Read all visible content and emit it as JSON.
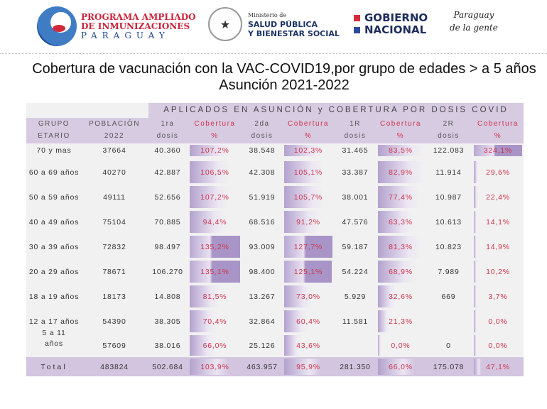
{
  "logos": {
    "pai": [
      "PROGRAMA AMPLIADO",
      "DE INMUNIZACIONES",
      "PARAGUAY"
    ],
    "ministerio": [
      "Ministerio de",
      "SALUD PÚBLICA",
      "Y BIENESTAR SOCIAL"
    ],
    "gobierno": [
      "GOBIERNO",
      "NACIONAL"
    ],
    "slogan": [
      "Paraguay",
      "de la gente"
    ]
  },
  "title": "Cobertura de vacunación con la VAC-COVID19,por grupo de edades > a 5 años Asunción 2021-2022",
  "table": {
    "band": "APLICADOS EN ASUNCIÓN y COBERTURA POR DOSIS COVID",
    "headers": [
      [
        "GRUPO",
        "ETARIO"
      ],
      [
        "POBLACIÓN",
        "2022"
      ],
      [
        "1ra",
        "dosis"
      ],
      [
        "Cobertura",
        "%"
      ],
      [
        "2da",
        "dosis"
      ],
      [
        "Cobertura",
        "%"
      ],
      [
        "1R",
        "dosis"
      ],
      [
        "Cobertura",
        "%"
      ],
      [
        "2R",
        "dosis"
      ],
      [
        "Cobertura",
        "%"
      ]
    ],
    "rows": [
      [
        "70 y mas",
        "37664",
        "40.360",
        "107,2%",
        "38.548",
        "102,3%",
        "31.465",
        "83,5%",
        "122.083",
        "324,1%"
      ],
      [
        "60 a 69 años",
        "40270",
        "42.887",
        "106,5%",
        "42.308",
        "105,1%",
        "33.387",
        "82,9%",
        "11.914",
        "29,6%"
      ],
      [
        "50 a 59 años",
        "49111",
        "52.656",
        "107,2%",
        "51.919",
        "105,7%",
        "38.001",
        "77,4%",
        "10.987",
        "22,4%"
      ],
      [
        "40 a 49 años",
        "75104",
        "70.885",
        "94,4%",
        "68.516",
        "91,2%",
        "47.576",
        "63,3%",
        "10.613",
        "14,1%"
      ],
      [
        "30 a 39 años",
        "72832",
        "98.497",
        "135,2%",
        "93.009",
        "127,7%",
        "59.187",
        "81,3%",
        "10.823",
        "14,9%"
      ],
      [
        "20 a 29 años",
        "78671",
        "106.270",
        "135,1%",
        "98.400",
        "125,1%",
        "54.224",
        "68,9%",
        "7.989",
        "10,2%"
      ],
      [
        "18 a 19 años",
        "18173",
        "14.808",
        "81,5%",
        "13.267",
        "73,0%",
        "5.929",
        "32,6%",
        "669",
        "3,7%"
      ],
      [
        "12 a 17 años",
        "54390",
        "38.305",
        "70,4%",
        "32.864",
        "60,4%",
        "11.581",
        "21,3%",
        "",
        "0,0%"
      ],
      [
        "5 a 11 años",
        "57609",
        "38.016",
        "66,0%",
        "25.126",
        "43,6%",
        "",
        "0,0%",
        "0",
        "0,0%"
      ]
    ],
    "total": [
      "Total",
      "483824",
      "502.684",
      "103,9%",
      "463.957",
      "95,9%",
      "281.350",
      "66,0%",
      "175.078",
      "47,1%"
    ],
    "colors": {
      "header": "#d7cbe2",
      "coverage_text": "#d0344c",
      "bar": "#b3a1cd"
    }
  }
}
